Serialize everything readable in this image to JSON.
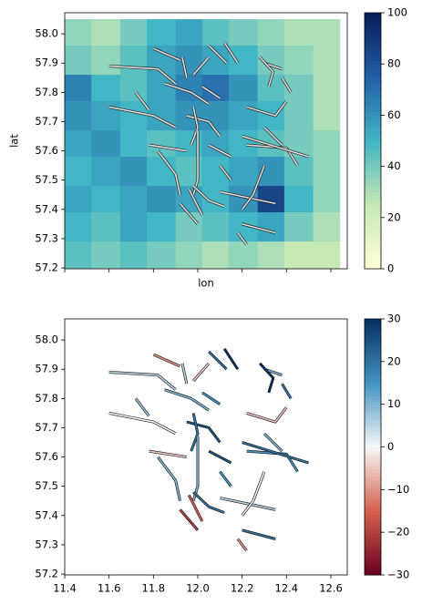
{
  "chart_data": [
    {
      "type": "heatmap",
      "xlabel": "lon",
      "ylabel": "lat",
      "xlim": [
        11.4,
        12.674
      ],
      "ylim": [
        57.197,
        58.072
      ],
      "xticks": [
        11.4,
        11.6,
        11.8,
        12.0,
        12.2,
        12.4,
        12.6
      ],
      "yticks": [
        57.2,
        57.3,
        57.4,
        57.5,
        57.6,
        57.7,
        57.8,
        57.9,
        {
          "value": 58,
          "label": "58.0"
        }
      ],
      "xbins": [
        11.4,
        11.52,
        11.65,
        11.77,
        11.9,
        12.02,
        12.14,
        12.27,
        12.39,
        12.52,
        12.64
      ],
      "ybins": [
        58.05,
        57.96,
        57.86,
        57.77,
        57.67,
        57.58,
        57.48,
        57.39,
        57.29,
        57.2
      ],
      "z": [
        [
          35,
          30,
          40,
          50,
          55,
          45,
          40,
          35,
          30,
          30
        ],
        [
          40,
          35,
          45,
          55,
          60,
          55,
          50,
          40,
          35,
          30
        ],
        [
          65,
          50,
          45,
          55,
          65,
          70,
          60,
          45,
          40,
          30
        ],
        [
          60,
          55,
          50,
          55,
          60,
          60,
          55,
          50,
          40,
          30
        ],
        [
          55,
          60,
          50,
          45,
          50,
          55,
          50,
          45,
          40,
          35
        ],
        [
          50,
          55,
          60,
          50,
          45,
          50,
          55,
          60,
          45,
          35
        ],
        [
          55,
          50,
          55,
          60,
          55,
          50,
          60,
          85,
          50,
          35
        ],
        [
          50,
          45,
          55,
          50,
          40,
          45,
          50,
          55,
          40,
          30
        ],
        [
          45,
          40,
          45,
          40,
          35,
          30,
          35,
          30,
          25,
          25
        ]
      ],
      "colorscale": [
        "#ffffd9",
        "#c7e9b4",
        "#41b6c4",
        "#225ea8",
        "#081d58"
      ],
      "clim": [
        0,
        100
      ],
      "cticks": [
        0,
        20,
        40,
        60,
        80,
        100
      ],
      "overlay_color": "#e0e0e0"
    },
    {
      "type": "segments",
      "xlim": [
        11.4,
        12.674
      ],
      "ylim": [
        57.197,
        58.072
      ],
      "xticks": [
        11.4,
        11.6,
        11.8,
        {
          "value": 12,
          "label": "12.0"
        },
        12.2,
        12.4,
        12.6
      ],
      "yticks": [
        57.2,
        57.3,
        57.4,
        57.5,
        57.6,
        57.7,
        57.8,
        57.9,
        {
          "value": 58,
          "label": "58.0"
        }
      ],
      "colorscale": [
        "#67001f",
        "#d6604d",
        "#f7f7f7",
        "#4393c3",
        "#053061"
      ],
      "clim": [
        -30,
        30
      ],
      "cticks": [
        {
          "value": -30,
          "label": "−30"
        },
        {
          "value": -20,
          "label": "−20"
        },
        {
          "value": -10,
          "label": "−10"
        },
        0,
        10,
        20,
        30
      ],
      "segments": [
        {
          "x": [
            11.6,
            11.82,
            11.9
          ],
          "y": [
            57.89,
            57.88,
            57.83
          ],
          "value": 5
        },
        {
          "x": [
            11.8,
            11.92
          ],
          "y": [
            57.95,
            57.91
          ],
          "value": -10
        },
        {
          "x": [
            11.93,
            11.95
          ],
          "y": [
            57.92,
            57.85
          ],
          "value": 5
        },
        {
          "x": [
            12.05,
            12.13
          ],
          "y": [
            57.96,
            57.9
          ],
          "value": 20
        },
        {
          "x": [
            12.12,
            12.18
          ],
          "y": [
            57.97,
            57.9
          ],
          "value": 30
        },
        {
          "x": [
            12.05,
            11.98
          ],
          "y": [
            57.92,
            57.86
          ],
          "value": -5
        },
        {
          "x": [
            12.02,
            12.1
          ],
          "y": [
            57.82,
            57.78
          ],
          "value": 15
        },
        {
          "x": [
            11.85,
            11.97,
            12.05
          ],
          "y": [
            57.83,
            57.8,
            57.76
          ],
          "value": 10
        },
        {
          "x": [
            11.6,
            11.8,
            11.9
          ],
          "y": [
            57.75,
            57.72,
            57.68
          ],
          "value": 0
        },
        {
          "x": [
            11.72,
            11.78
          ],
          "y": [
            57.8,
            57.74
          ],
          "value": 8
        },
        {
          "x": [
            11.95,
            12.05,
            12.1
          ],
          "y": [
            57.72,
            57.7,
            57.65
          ],
          "value": 25
        },
        {
          "x": [
            11.98,
            12.0,
            11.97
          ],
          "y": [
            57.75,
            57.68,
            57.62
          ],
          "value": 20
        },
        {
          "x": [
            12.0,
            12.0,
            11.98
          ],
          "y": [
            57.67,
            57.5,
            57.45
          ],
          "value": 10
        },
        {
          "x": [
            11.98,
            12.05,
            12.12
          ],
          "y": [
            57.48,
            57.43,
            57.41
          ],
          "value": 20
        },
        {
          "x": [
            11.96,
            12.02
          ],
          "y": [
            57.47,
            57.38
          ],
          "value": -15
        },
        {
          "x": [
            11.92,
            12.0
          ],
          "y": [
            57.42,
            57.35
          ],
          "value": -20
        },
        {
          "x": [
            12.1,
            12.35
          ],
          "y": [
            57.46,
            57.42
          ],
          "value": 5
        },
        {
          "x": [
            12.3,
            12.25,
            12.2
          ],
          "y": [
            57.55,
            57.45,
            57.4
          ],
          "value": 0
        },
        {
          "x": [
            12.22,
            12.4,
            12.45
          ],
          "y": [
            57.62,
            57.61,
            57.55
          ],
          "value": 15
        },
        {
          "x": [
            12.3,
            12.38
          ],
          "y": [
            57.68,
            57.62
          ],
          "value": 10
        },
        {
          "x": [
            12.22,
            12.35,
            12.4
          ],
          "y": [
            57.75,
            57.72,
            57.77
          ],
          "value": -5
        },
        {
          "x": [
            12.38,
            12.42
          ],
          "y": [
            57.85,
            57.8
          ],
          "value": 20
        },
        {
          "x": [
            12.3,
            12.38
          ],
          "y": [
            57.9,
            57.88
          ],
          "value": 10
        },
        {
          "x": [
            12.2,
            12.5
          ],
          "y": [
            57.65,
            57.58
          ],
          "value": 20
        },
        {
          "x": [
            11.82,
            11.9,
            11.92
          ],
          "y": [
            57.6,
            57.52,
            57.45
          ],
          "value": 10
        },
        {
          "x": [
            12.1,
            12.15
          ],
          "y": [
            57.55,
            57.5
          ],
          "value": 15
        },
        {
          "x": [
            12.2,
            12.35
          ],
          "y": [
            57.35,
            57.32
          ],
          "value": 20
        },
        {
          "x": [
            12.18,
            12.22
          ],
          "y": [
            57.32,
            57.28
          ],
          "value": -10
        },
        {
          "x": [
            11.78,
            11.95
          ],
          "y": [
            57.62,
            57.6
          ],
          "value": -5
        },
        {
          "x": [
            12.05,
            12.15
          ],
          "y": [
            57.62,
            57.58
          ],
          "value": 25
        },
        {
          "x": [
            12.28,
            12.34,
            12.32
          ],
          "y": [
            57.92,
            57.87,
            57.82
          ],
          "value": 30
        }
      ]
    }
  ]
}
